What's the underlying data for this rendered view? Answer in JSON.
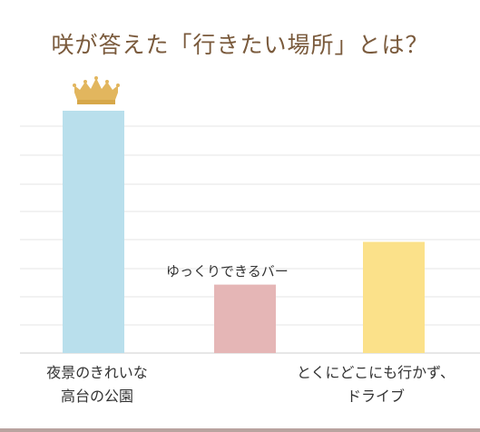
{
  "chart_data": {
    "type": "bar",
    "title": "咲が答えた「行きたい場所」とは？",
    "xlabel": "",
    "ylabel": "",
    "categories": [
      "夜景のきれいな\n高台の公園",
      "ゆっくりできるバー",
      "とくにどこにも行かず、\nドライブ"
    ],
    "values": [
      8.5,
      2.4,
      3.9
    ],
    "ylim": [
      0,
      8.5
    ],
    "colors": [
      "#b9dfec",
      "#e5b6b6",
      "#fbe18a"
    ],
    "grid": true,
    "legend": "none",
    "top_marker_icon": "crown-icon"
  }
}
